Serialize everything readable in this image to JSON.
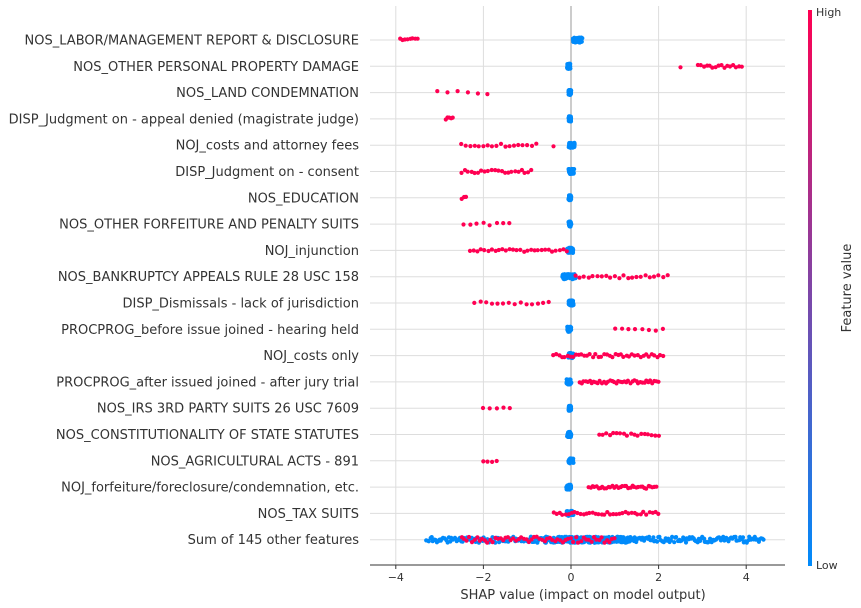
{
  "chart_data": {
    "type": "scatter",
    "xlabel": "SHAP value (impact on model output)",
    "xlim": [
      -4.3,
      4.9
    ],
    "xticks": [
      -4,
      -2,
      0,
      2,
      4
    ],
    "grid": true,
    "colorbar": {
      "label": "Feature value",
      "high_label": "High",
      "low_label": "Low",
      "high_color": "#ff0052",
      "low_color": "#008bfb"
    },
    "features": [
      {
        "name": "NOS_LABOR/MANAGEMENT REPORT & DISCLOSURE",
        "low": [
          [
            0.05,
            0.25,
            60
          ]
        ],
        "high": [
          [
            -3.9,
            -3.5,
            8
          ]
        ]
      },
      {
        "name": "NOS_OTHER PERSONAL PROPERTY DAMAGE",
        "low": [
          [
            -0.08,
            -0.02,
            60
          ]
        ],
        "high": [
          [
            2.5,
            2.5,
            1
          ],
          [
            2.9,
            3.9,
            16
          ]
        ]
      },
      {
        "name": "NOS_LAND CONDEMNATION",
        "low": [
          [
            -0.05,
            0.0,
            60
          ]
        ],
        "high": [
          [
            -3.05,
            -1.9,
            6
          ]
        ]
      },
      {
        "name": "DISP_Judgment on - appeal denied (magistrate judge)",
        "low": [
          [
            -0.05,
            0.0,
            60
          ]
        ],
        "high": [
          [
            -2.85,
            -2.7,
            5
          ]
        ]
      },
      {
        "name": "NOJ_costs and attorney fees",
        "low": [
          [
            -0.05,
            0.08,
            60
          ]
        ],
        "high": [
          [
            -2.5,
            -0.8,
            18
          ],
          [
            -0.4,
            -0.4,
            1
          ]
        ]
      },
      {
        "name": "DISP_Judgment on - consent",
        "low": [
          [
            -0.05,
            0.06,
            60
          ]
        ],
        "high": [
          [
            -2.5,
            -0.9,
            22
          ]
        ]
      },
      {
        "name": "NOS_EDUCATION",
        "low": [
          [
            -0.05,
            0.0,
            60
          ]
        ],
        "high": [
          [
            -2.5,
            -2.4,
            3
          ]
        ]
      },
      {
        "name": "NOS_OTHER FORFEITURE AND PENALTY SUITS",
        "low": [
          [
            -0.05,
            0.0,
            60
          ]
        ],
        "high": [
          [
            -2.45,
            -1.4,
            8
          ]
        ]
      },
      {
        "name": "NOJ_injunction",
        "low": [
          [
            -0.08,
            0.05,
            60
          ]
        ],
        "high": [
          [
            -2.3,
            -0.1,
            28
          ]
        ]
      },
      {
        "name": "NOS_BANKRUPTCY APPEALS RULE 28 USC 158",
        "low": [
          [
            -0.2,
            0.1,
            60
          ]
        ],
        "high": [
          [
            0.1,
            2.2,
            22
          ]
        ]
      },
      {
        "name": "DISP_Dismissals - lack of jurisdiction",
        "low": [
          [
            -0.05,
            0.05,
            60
          ]
        ],
        "high": [
          [
            -2.2,
            -0.5,
            14
          ]
        ]
      },
      {
        "name": "PROCPROG_before issue joined - hearing held",
        "low": [
          [
            -0.08,
            0.0,
            60
          ]
        ],
        "high": [
          [
            1.0,
            2.1,
            8
          ]
        ]
      },
      {
        "name": "NOJ_costs only",
        "low": [
          [
            -0.05,
            0.05,
            60
          ]
        ],
        "high": [
          [
            -0.4,
            2.1,
            40
          ]
        ]
      },
      {
        "name": "PROCPROG_after issued joined - after jury trial",
        "low": [
          [
            -0.1,
            0.0,
            60
          ]
        ],
        "high": [
          [
            0.2,
            2.0,
            40
          ]
        ]
      },
      {
        "name": "NOS_IRS 3RD PARTY SUITS 26 USC 7609",
        "low": [
          [
            -0.05,
            0.0,
            60
          ]
        ],
        "high": [
          [
            -2.0,
            -1.4,
            5
          ]
        ]
      },
      {
        "name": "NOS_CONSTITUTIONALITY OF STATE STATUTES",
        "low": [
          [
            -0.08,
            0.0,
            60
          ]
        ],
        "high": [
          [
            0.65,
            2.0,
            18
          ]
        ]
      },
      {
        "name": "NOS_AGRICULTURAL ACTS - 891",
        "low": [
          [
            -0.05,
            0.05,
            60
          ]
        ],
        "high": [
          [
            -2.0,
            -1.7,
            4
          ]
        ]
      },
      {
        "name": "NOJ_forfeiture/foreclosure/condemnation, etc.",
        "low": [
          [
            -0.1,
            0.0,
            60
          ]
        ],
        "high": [
          [
            0.4,
            1.95,
            35
          ]
        ]
      },
      {
        "name": "NOS_TAX SUITS",
        "low": [
          [
            -0.1,
            0.05,
            60
          ]
        ],
        "high": [
          [
            -0.4,
            2.0,
            36
          ]
        ]
      },
      {
        "name": "Sum of 145 other features",
        "low": [
          [
            -3.3,
            4.4,
            260
          ],
          [
            -0.6,
            1.5,
            200
          ]
        ],
        "high": [
          [
            -2.5,
            1.0,
            60
          ]
        ]
      }
    ]
  }
}
